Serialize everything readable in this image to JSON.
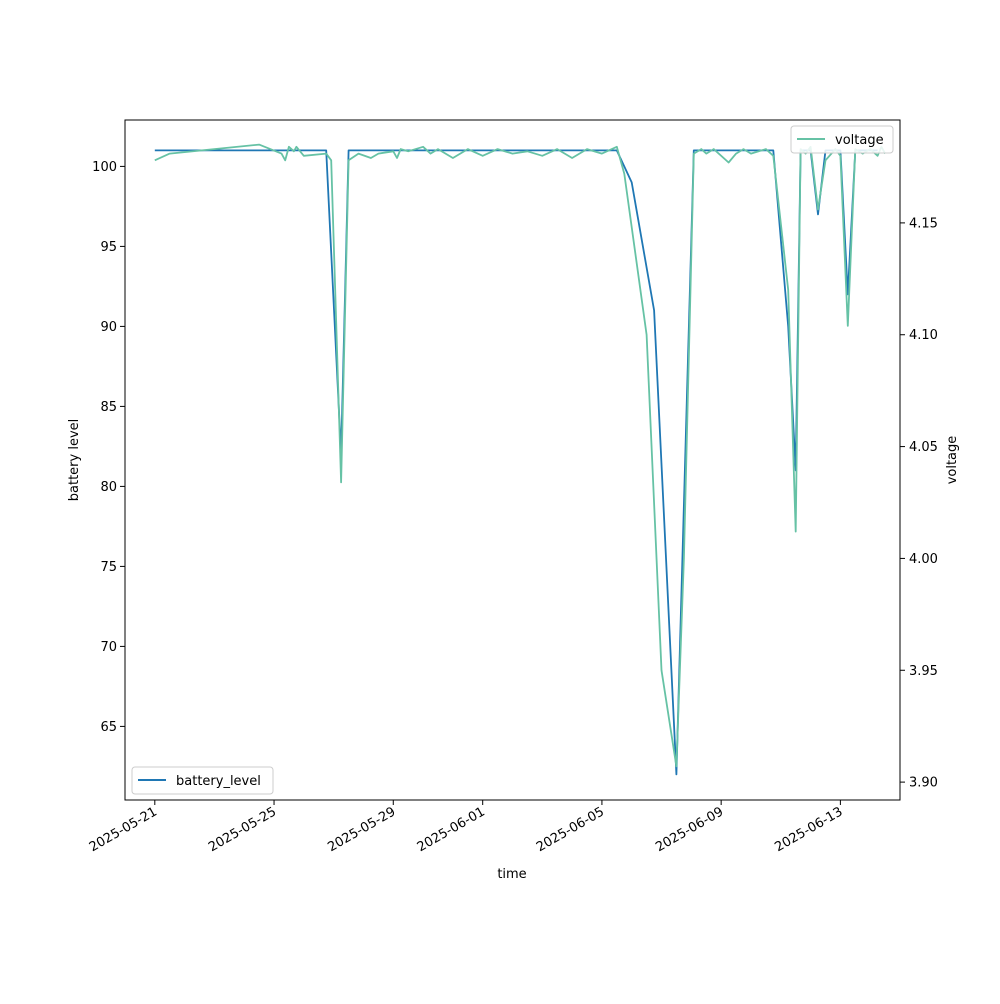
{
  "chart_data": {
    "type": "line",
    "xlabel": "time",
    "ylabel_left": "battery level",
    "ylabel_right": "voltage",
    "x_range": [
      "2025-05-20",
      "2025-06-15"
    ],
    "x_ticks": [
      "2025-05-21",
      "2025-05-25",
      "2025-05-29",
      "2025-06-01",
      "2025-06-05",
      "2025-06-09",
      "2025-06-13"
    ],
    "ylim_left": [
      60.4,
      102.9
    ],
    "yticks_left": [
      65,
      70,
      75,
      80,
      85,
      90,
      95,
      100
    ],
    "ylim_right": [
      3.892,
      4.196
    ],
    "yticks_right": [
      "3.90",
      "3.95",
      "4.00",
      "4.05",
      "4.10",
      "4.15"
    ],
    "grid": false,
    "series": [
      {
        "name": "battery_level",
        "axis": "left",
        "color": "#1f77b4",
        "legend_position": "lower left",
        "points": [
          [
            "2025-05-21T00:00",
            101
          ],
          [
            "2025-05-26T18:00",
            101
          ],
          [
            "2025-05-27T06:00",
            82
          ],
          [
            "2025-05-27T12:00",
            101
          ],
          [
            "2025-06-05T12:00",
            101
          ],
          [
            "2025-06-06T00:00",
            99
          ],
          [
            "2025-06-06T18:00",
            91
          ],
          [
            "2025-06-07T12:00",
            62
          ],
          [
            "2025-06-08T02:00",
            101
          ],
          [
            "2025-06-10T18:00",
            101
          ],
          [
            "2025-06-11T06:00",
            90
          ],
          [
            "2025-06-11T12:00",
            81
          ],
          [
            "2025-06-11T16:00",
            101
          ],
          [
            "2025-06-12T00:00",
            101
          ],
          [
            "2025-06-12T06:00",
            97
          ],
          [
            "2025-06-12T12:00",
            101
          ],
          [
            "2025-06-13T00:00",
            101
          ],
          [
            "2025-06-13T06:00",
            92
          ],
          [
            "2025-06-13T12:00",
            101
          ],
          [
            "2025-06-14T06:00",
            101
          ]
        ]
      },
      {
        "name": "voltage",
        "axis": "right",
        "color": "#66c2a5",
        "legend_position": "upper right",
        "points": [
          [
            "2025-05-21T00:00",
            4.178
          ],
          [
            "2025-05-21T12:00",
            4.181
          ],
          [
            "2025-05-24T12:00",
            4.185
          ],
          [
            "2025-05-25T06:00",
            4.181
          ],
          [
            "2025-05-25T09:00",
            4.178
          ],
          [
            "2025-05-25T12:00",
            4.184
          ],
          [
            "2025-05-25T16:00",
            4.182
          ],
          [
            "2025-05-25T18:00",
            4.184
          ],
          [
            "2025-05-26T00:00",
            4.18
          ],
          [
            "2025-05-26T18:00",
            4.181
          ],
          [
            "2025-05-26T22:00",
            4.178
          ],
          [
            "2025-05-27T06:00",
            4.034
          ],
          [
            "2025-05-27T12:00",
            4.178
          ],
          [
            "2025-05-27T20:00",
            4.181
          ],
          [
            "2025-05-28T06:00",
            4.179
          ],
          [
            "2025-05-28T12:00",
            4.181
          ],
          [
            "2025-05-29T00:00",
            4.182
          ],
          [
            "2025-05-29T03:00",
            4.179
          ],
          [
            "2025-05-29T06:00",
            4.183
          ],
          [
            "2025-05-29T12:00",
            4.182
          ],
          [
            "2025-05-30T00:00",
            4.184
          ],
          [
            "2025-05-30T06:00",
            4.181
          ],
          [
            "2025-05-30T12:00",
            4.183
          ],
          [
            "2025-05-31T00:00",
            4.179
          ],
          [
            "2025-05-31T12:00",
            4.183
          ],
          [
            "2025-06-01T00:00",
            4.18
          ],
          [
            "2025-06-01T12:00",
            4.183
          ],
          [
            "2025-06-02T00:00",
            4.181
          ],
          [
            "2025-06-02T12:00",
            4.182
          ],
          [
            "2025-06-03T00:00",
            4.18
          ],
          [
            "2025-06-03T12:00",
            4.183
          ],
          [
            "2025-06-04T00:00",
            4.179
          ],
          [
            "2025-06-04T12:00",
            4.183
          ],
          [
            "2025-06-05T00:00",
            4.181
          ],
          [
            "2025-06-05T12:00",
            4.184
          ],
          [
            "2025-06-05T18:00",
            4.172
          ],
          [
            "2025-06-06T12:00",
            4.1
          ],
          [
            "2025-06-07T00:00",
            3.95
          ],
          [
            "2025-06-07T12:00",
            3.907
          ],
          [
            "2025-06-07T18:00",
            4.0
          ],
          [
            "2025-06-08T02:00",
            4.181
          ],
          [
            "2025-06-08T08:00",
            4.183
          ],
          [
            "2025-06-08T12:00",
            4.181
          ],
          [
            "2025-06-08T18:00",
            4.183
          ],
          [
            "2025-06-09T06:00",
            4.177
          ],
          [
            "2025-06-09T12:00",
            4.181
          ],
          [
            "2025-06-09T18:00",
            4.183
          ],
          [
            "2025-06-10T00:00",
            4.181
          ],
          [
            "2025-06-10T12:00",
            4.183
          ],
          [
            "2025-06-10T18:00",
            4.18
          ],
          [
            "2025-06-11T06:00",
            4.12
          ],
          [
            "2025-06-11T12:00",
            4.012
          ],
          [
            "2025-06-11T16:00",
            4.183
          ],
          [
            "2025-06-11T20:00",
            4.181
          ],
          [
            "2025-06-12T00:00",
            4.184
          ],
          [
            "2025-06-12T06:00",
            4.156
          ],
          [
            "2025-06-12T12:00",
            4.178
          ],
          [
            "2025-06-12T20:00",
            4.183
          ],
          [
            "2025-06-13T00:00",
            4.18
          ],
          [
            "2025-06-13T06:00",
            4.104
          ],
          [
            "2025-06-13T12:00",
            4.183
          ],
          [
            "2025-06-13T18:00",
            4.181
          ],
          [
            "2025-06-14T00:00",
            4.183
          ],
          [
            "2025-06-14T06:00",
            4.18
          ],
          [
            "2025-06-14T09:00",
            4.184
          ],
          [
            "2025-06-14T12:00",
            4.181
          ]
        ]
      }
    ]
  }
}
